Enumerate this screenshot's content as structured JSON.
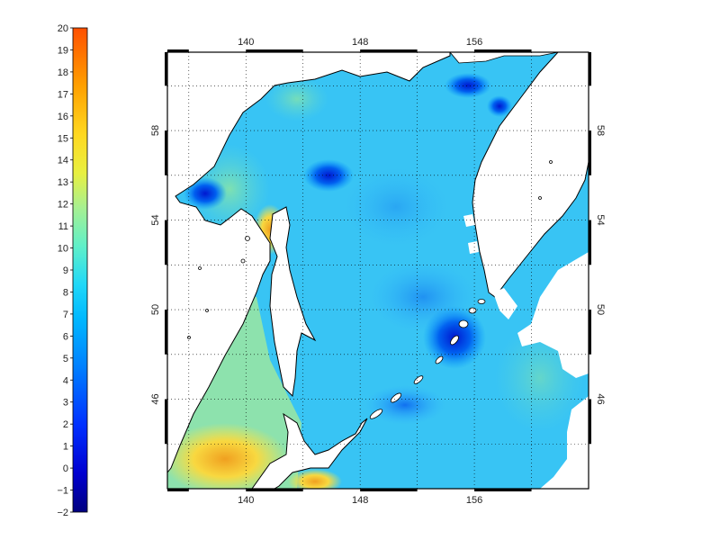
{
  "colorbar": {
    "ticks": [
      "20",
      "19",
      "18",
      "17",
      "16",
      "15",
      "14",
      "13",
      "12",
      "11",
      "10",
      "9",
      "8",
      "7",
      "6",
      "5",
      "4",
      "3",
      "2",
      "1",
      "0",
      "−1",
      "−2"
    ],
    "range": [
      -2,
      20
    ],
    "colors": [
      "#00008f",
      "#0000cf",
      "#0020ff",
      "#0060ff",
      "#00a0ff",
      "#20d0ff",
      "#40e8ff",
      "#70f0d0",
      "#a0f0a0",
      "#d0f070",
      "#f0f040",
      "#ffd020",
      "#ffa000",
      "#ff7000",
      "#ff4000"
    ]
  },
  "map": {
    "lon_top_ticks": [
      "140",
      "148",
      "156"
    ],
    "lon_bottom_ticks": [
      "140",
      "148",
      "156"
    ],
    "lat_left_ticks": [
      "58",
      "54",
      "50",
      "46"
    ],
    "lat_right_ticks": [
      "58",
      "54",
      "50",
      "46"
    ],
    "lon_range": [
      134.5,
      164
    ],
    "lat_range": [
      42,
      61.5
    ],
    "land_color": "#ffffff",
    "coast_color": "#000000"
  }
}
